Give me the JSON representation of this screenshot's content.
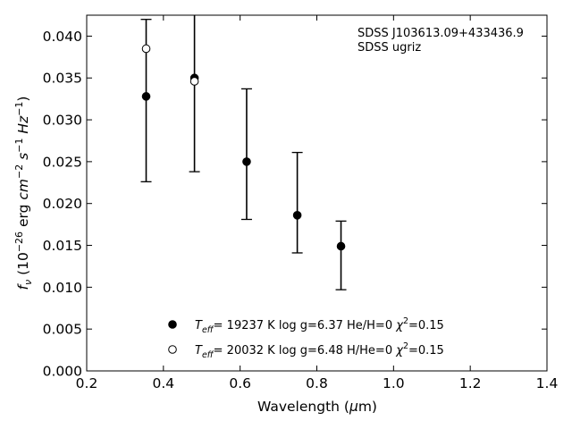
{
  "chart_data": {
    "type": "scatter",
    "annotation_lines": [
      "SDSS J103613.09+433436.9",
      "SDSS ugriz"
    ],
    "xlabel": {
      "main": "Wavelength (",
      "symbol": "μ",
      "unit": "m)"
    },
    "ylabel": {
      "f": "f",
      "fsub": "ν",
      "open": " (10",
      "exp1": "−26",
      "mid": " erg ",
      "cm": "cm",
      "exp2": "−2",
      "s": " s",
      "exp3": "−1",
      "hz": " Hz",
      "exp4": "−1",
      "close": ")"
    },
    "xlim": [
      0.2,
      1.4
    ],
    "ylim": [
      0.0,
      0.0425
    ],
    "xticks": [
      0.2,
      0.4,
      0.6,
      0.8,
      1.0,
      1.2,
      1.4
    ],
    "xtick_labels": [
      "0.2",
      "0.4",
      "0.6",
      "0.8",
      "1.0",
      "1.2",
      "1.4"
    ],
    "yticks": [
      0.0,
      0.005,
      0.01,
      0.015,
      0.02,
      0.025,
      0.03,
      0.035,
      0.04
    ],
    "ytick_labels": [
      "0.000",
      "0.005",
      "0.010",
      "0.015",
      "0.020",
      "0.025",
      "0.030",
      "0.035",
      "0.040"
    ],
    "grid": false,
    "legend_position": "lower-center",
    "observed": {
      "points": [
        {
          "band": "u",
          "x": 0.355,
          "y": 0.0328,
          "yerr_low": 0.0226,
          "yerr_high": 0.042
        },
        {
          "band": "g",
          "x": 0.481,
          "y": 0.035,
          "yerr_low": 0.0238,
          "yerr_high": 0.043
        },
        {
          "band": "r",
          "x": 0.617,
          "y": 0.025,
          "yerr_low": 0.0181,
          "yerr_high": 0.0337
        },
        {
          "band": "i",
          "x": 0.749,
          "y": 0.0186,
          "yerr_low": 0.0141,
          "yerr_high": 0.0261
        },
        {
          "band": "z",
          "x": 0.863,
          "y": 0.0149,
          "yerr_low": 0.0097,
          "yerr_high": 0.0179
        }
      ]
    },
    "series": [
      {
        "marker": "filled",
        "color": "#000000",
        "x": [
          0.355,
          0.481,
          0.617,
          0.749,
          0.863
        ],
        "y": [
          0.0328,
          0.035,
          0.025,
          0.0186,
          0.0149
        ],
        "legend": {
          "T": "T",
          "Tsub": "eff",
          "a": "= 19237 K  log g=6.37  He/H=0  ",
          "chi": "χ",
          "chiexp": "2",
          "b": "=0.15"
        }
      },
      {
        "marker": "open",
        "color": "#000000",
        "x": [
          0.355,
          0.481
        ],
        "y": [
          0.0385,
          0.0346
        ],
        "legend": {
          "T": "T",
          "Tsub": "eff",
          "a": "= 20032 K  log g=6.48  H/He=0  ",
          "chi": "χ",
          "chiexp": "2",
          "b": "=0.15"
        }
      }
    ]
  }
}
